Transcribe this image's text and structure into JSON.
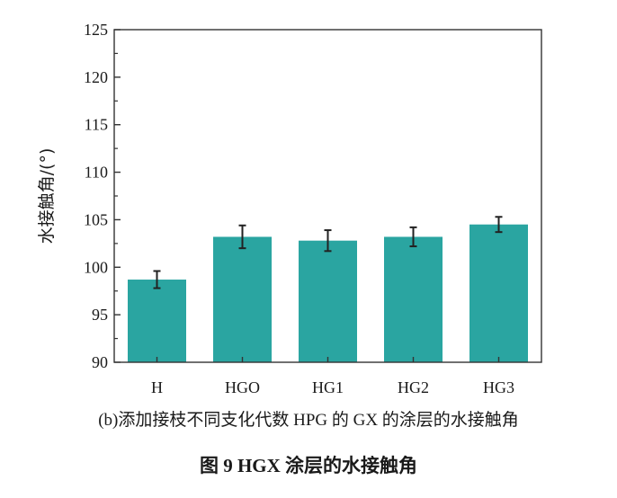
{
  "chart_data": {
    "type": "bar",
    "categories": [
      "H",
      "HGO",
      "HG1",
      "HG2",
      "HG3"
    ],
    "values": [
      98.7,
      103.2,
      102.8,
      103.2,
      104.5
    ],
    "errors": [
      0.9,
      1.2,
      1.1,
      1.0,
      0.8
    ],
    "ylabel": "水接触角/(°)",
    "xlabel": "",
    "ylim": [
      90,
      125
    ],
    "yticks": [
      90,
      95,
      100,
      105,
      110,
      115,
      120,
      125
    ],
    "bar_color": "#2aa5a1",
    "grid": false,
    "legend": "none"
  },
  "captions": {
    "sub": "(b)添加接枝不同支化代数 HPG 的 GX 的涂层的水接触角",
    "figure": "图 9   HGX 涂层的水接触角"
  }
}
